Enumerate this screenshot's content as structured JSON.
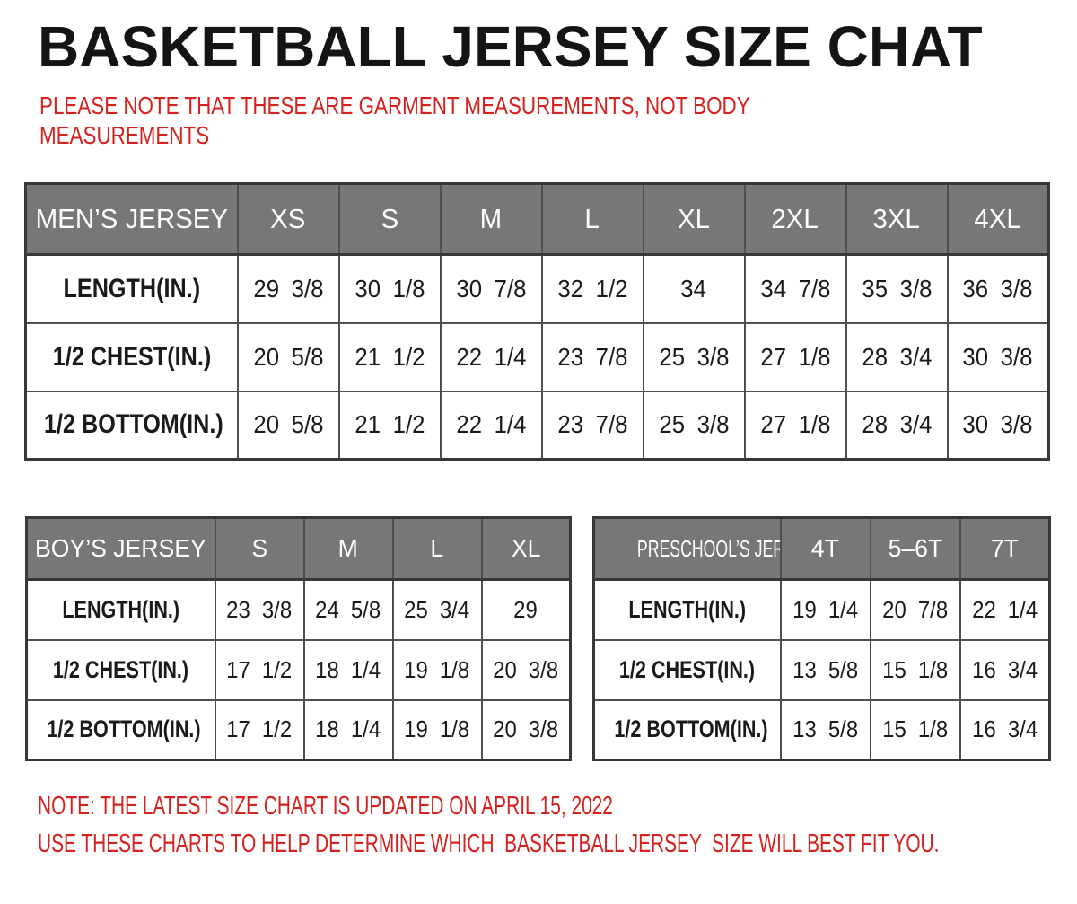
{
  "title": "BASKETBALL JERSEY SIZE CHAT",
  "subtitle_lines": [
    "PLEASE NOTE THAT THESE ARE GARMENT MEASUREMENTS, NOT BODY",
    "MEASUREMENTS"
  ],
  "notes": [
    "NOTE: THE LATEST SIZE CHART IS UPDATED ON APRIL 15, 2022",
    "USE THESE CHARTS TO HELP DETERMINE WHICH  BASKETBALL JERSEY  SIZE WILL BEST FIT YOU."
  ],
  "colors": {
    "header_bg": "#777777",
    "note_red": "#d5221e",
    "border_dark": "#383838",
    "text": "#1a1a1a"
  },
  "tables": [
    {
      "id": "mens",
      "header": [
        "MEN’S JERSEY",
        "XS",
        "S",
        "M",
        "L",
        "XL",
        "2XL",
        "3XL",
        "4XL"
      ],
      "rows": [
        [
          "LENGTH(IN.)",
          "29 3/8",
          "30 1/8",
          "30 7/8",
          "32 1/2",
          "34",
          "34 7/8",
          "35 3/8",
          "36 3/8"
        ],
        [
          "1/2 CHEST(IN.)",
          "20 5/8",
          "21 1/2",
          "22 1/4",
          "23 7/8",
          "25 3/8",
          "27 1/8",
          "28 3/4",
          "30 3/8"
        ],
        [
          "1/2 BOTTOM(IN.)",
          "20 5/8",
          "21 1/2",
          "22 1/4",
          "23 7/8",
          "25 3/8",
          "27 1/8",
          "28 3/4",
          "30 3/8"
        ]
      ]
    },
    {
      "id": "boys",
      "header": [
        "BOY’S JERSEY",
        "S",
        "M",
        "L",
        "XL"
      ],
      "rows": [
        [
          "LENGTH(IN.)",
          "23 3/8",
          "24 5/8",
          "25 3/4",
          "29"
        ],
        [
          "1/2 CHEST(IN.)",
          "17 1/2",
          "18 1/4",
          "19 1/8",
          "20 3/8"
        ],
        [
          "1/2 BOTTOM(IN.)",
          "17 1/2",
          "18 1/4",
          "19 1/8",
          "20 3/8"
        ]
      ]
    },
    {
      "id": "preschool",
      "header": [
        "PRESCHOOL’S JERSEY",
        "4T",
        "5–6T",
        "7T"
      ],
      "rows": [
        [
          "LENGTH(IN.)",
          "19 1/4",
          "20 7/8",
          "22 1/4"
        ],
        [
          "1/2 CHEST(IN.)",
          "13 5/8",
          "15 1/8",
          "16 3/4"
        ],
        [
          "1/2 BOTTOM(IN.)",
          "13 5/8",
          "15 1/8",
          "16 3/4"
        ]
      ]
    }
  ]
}
